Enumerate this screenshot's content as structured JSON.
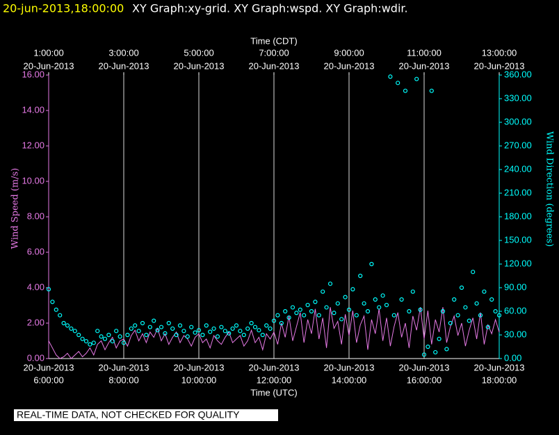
{
  "header": {
    "timestamp": "20-jun-2013,18:00:00",
    "graphs": "XY Graph:xy-grid.  XY Graph:wspd.  XY Graph:wdir."
  },
  "chart_data": {
    "type": "line",
    "x_label": "Time (UTC)",
    "x2_label": "Time (CDT)",
    "y_label": "Wind Speed (m/s)",
    "y2_label": "Wind Direction (degrees)",
    "xlim": [
      6,
      18
    ],
    "xticks": [
      {
        "value": 6,
        "date": "20-Jun-2013",
        "label": "6:00:00"
      },
      {
        "value": 8,
        "date": "20-Jun-2013",
        "label": "8:00:00"
      },
      {
        "value": 10,
        "date": "20-Jun-2013",
        "label": "10:00:00"
      },
      {
        "value": 12,
        "date": "20-Jun-2013",
        "label": "12:00:00"
      },
      {
        "value": 14,
        "date": "20-Jun-2013",
        "label": "14:00:00"
      },
      {
        "value": 16,
        "date": "20-Jun-2013",
        "label": "16:00:00"
      },
      {
        "value": 18,
        "date": "20-Jun-2013",
        "label": "18:00:00"
      }
    ],
    "x2lim": [
      1,
      13
    ],
    "x2ticks": [
      {
        "value": 1,
        "date": "20-Jun-2013",
        "label": "1:00:00"
      },
      {
        "value": 3,
        "date": "20-Jun-2013",
        "label": "3:00:00"
      },
      {
        "value": 5,
        "date": "20-Jun-2013",
        "label": "5:00:00"
      },
      {
        "value": 7,
        "date": "20-Jun-2013",
        "label": "7:00:00"
      },
      {
        "value": 9,
        "date": "20-Jun-2013",
        "label": "9:00:00"
      },
      {
        "value": 11,
        "date": "20-Jun-2013",
        "label": "11:00:00"
      },
      {
        "value": 13,
        "date": "20-Jun-2013",
        "label": "13:00:00"
      }
    ],
    "ylim": [
      0,
      16
    ],
    "yticks": [
      {
        "value": 0,
        "label": "0.00"
      },
      {
        "value": 2,
        "label": "2.00"
      },
      {
        "value": 4,
        "label": "4.00"
      },
      {
        "value": 6,
        "label": "6.00"
      },
      {
        "value": 8,
        "label": "8.00"
      },
      {
        "value": 10,
        "label": "10.00"
      },
      {
        "value": 12,
        "label": "12.00"
      },
      {
        "value": 14,
        "label": "14.00"
      },
      {
        "value": 16,
        "label": "16.00"
      }
    ],
    "y2lim": [
      0,
      360
    ],
    "y2ticks": [
      {
        "value": 0,
        "label": "0.00"
      },
      {
        "value": 30,
        "label": "30.00"
      },
      {
        "value": 60,
        "label": "60.00"
      },
      {
        "value": 90,
        "label": "90.00"
      },
      {
        "value": 120,
        "label": "120.00"
      },
      {
        "value": 150,
        "label": "150.00"
      },
      {
        "value": 180,
        "label": "180.00"
      },
      {
        "value": 210,
        "label": "210.00"
      },
      {
        "value": 240,
        "label": "240.00"
      },
      {
        "value": 270,
        "label": "270.00"
      },
      {
        "value": 300,
        "label": "300.00"
      },
      {
        "value": 330,
        "label": "330.00"
      },
      {
        "value": 360,
        "label": "360.00"
      }
    ],
    "grid": "x",
    "x": [
      6.0,
      6.1,
      6.2,
      6.3,
      6.4,
      6.5,
      6.6,
      6.7,
      6.8,
      6.9,
      7.0,
      7.1,
      7.2,
      7.3,
      7.4,
      7.5,
      7.6,
      7.7,
      7.8,
      7.9,
      8.0,
      8.1,
      8.2,
      8.3,
      8.4,
      8.5,
      8.6,
      8.7,
      8.8,
      8.9,
      9.0,
      9.1,
      9.2,
      9.3,
      9.4,
      9.5,
      9.6,
      9.7,
      9.8,
      9.9,
      10.0,
      10.1,
      10.2,
      10.3,
      10.4,
      10.5,
      10.6,
      10.7,
      10.8,
      10.9,
      11.0,
      11.1,
      11.2,
      11.3,
      11.4,
      11.5,
      11.6,
      11.7,
      11.8,
      11.9,
      12.0,
      12.1,
      12.2,
      12.3,
      12.4,
      12.5,
      12.6,
      12.7,
      12.8,
      12.9,
      13.0,
      13.1,
      13.2,
      13.3,
      13.4,
      13.5,
      13.6,
      13.7,
      13.8,
      13.9,
      14.0,
      14.1,
      14.2,
      14.3,
      14.4,
      14.5,
      14.6,
      14.7,
      14.8,
      14.9,
      15.0,
      15.1,
      15.2,
      15.3,
      15.4,
      15.5,
      15.6,
      15.7,
      15.8,
      15.9,
      16.0,
      16.1,
      16.2,
      16.3,
      16.4,
      16.5,
      16.6,
      16.7,
      16.8,
      16.9,
      17.0,
      17.1,
      17.2,
      17.3,
      17.4,
      17.5,
      17.6,
      17.7,
      17.8,
      17.9,
      18.0
    ],
    "series": [
      {
        "color": "#e67ae6",
        "values": [
          1.0,
          0.6,
          0.2,
          0.0,
          0.1,
          0.3,
          0.0,
          0.2,
          0.4,
          0.1,
          0.3,
          0.6,
          0.2,
          0.8,
          1.0,
          0.5,
          0.9,
          1.2,
          0.6,
          1.0,
          1.1,
          0.7,
          1.3,
          1.6,
          1.0,
          1.4,
          0.9,
          1.5,
          1.2,
          1.7,
          1.0,
          1.4,
          0.8,
          1.2,
          1.5,
          0.9,
          1.3,
          1.1,
          0.7,
          1.2,
          1.4,
          0.9,
          1.1,
          0.6,
          1.3,
          1.0,
          0.8,
          1.2,
          1.5,
          0.9,
          1.1,
          1.3,
          0.7,
          1.0,
          1.6,
          0.9,
          1.2,
          0.5,
          1.4,
          1.1,
          1.5,
          0.8,
          2.0,
          1.2,
          2.4,
          1.0,
          1.8,
          2.6,
          0.9,
          2.2,
          1.4,
          2.8,
          1.1,
          2.3,
          0.6,
          2.9,
          1.7,
          2.1,
          0.8,
          2.5,
          1.3,
          2.7,
          0.9,
          1.9,
          2.4,
          0.5,
          2.2,
          1.4,
          2.8,
          1.0,
          2.3,
          0.7,
          1.8,
          2.6,
          1.2,
          2.0,
          0.6,
          2.4,
          1.6,
          2.9,
          1.1,
          2.7,
          0.8,
          2.2,
          1.5,
          2.9,
          0.9,
          1.8,
          2.4,
          1.3,
          2.0,
          0.7,
          1.6,
          2.3,
          1.1,
          2.6,
          0.8,
          1.9,
          1.4,
          2.2,
          1.5
        ]
      },
      {
        "color": "#00ffff",
        "axis": "y2",
        "marker": "circle",
        "values": [
          88,
          72,
          62,
          55,
          45,
          42,
          38,
          35,
          30,
          25,
          22,
          18,
          20,
          35,
          28,
          25,
          30,
          22,
          35,
          28,
          20,
          30,
          38,
          42,
          35,
          45,
          30,
          40,
          48,
          36,
          40,
          32,
          45,
          38,
          30,
          42,
          35,
          28,
          40,
          33,
          36,
          30,
          42,
          34,
          38,
          28,
          40,
          35,
          32,
          38,
          42,
          35,
          30,
          38,
          45,
          40,
          36,
          30,
          42,
          38,
          48,
          55,
          45,
          60,
          52,
          65,
          58,
          62,
          55,
          68,
          60,
          72,
          55,
          85,
          65,
          95,
          58,
          70,
          50,
          78,
          62,
          88,
          55,
          105,
          70,
          60,
          120,
          75,
          65,
          80,
          68,
          358,
          55,
          350,
          75,
          340,
          60,
          85,
          355,
          62,
          5,
          15,
          340,
          8,
          25,
          60,
          12,
          45,
          75,
          55,
          90,
          65,
          48,
          110,
          70,
          55,
          85,
          40,
          75,
          60,
          55
        ]
      }
    ]
  },
  "footer": {
    "notice": "REAL-TIME DATA, NOT CHECKED FOR QUALITY"
  }
}
